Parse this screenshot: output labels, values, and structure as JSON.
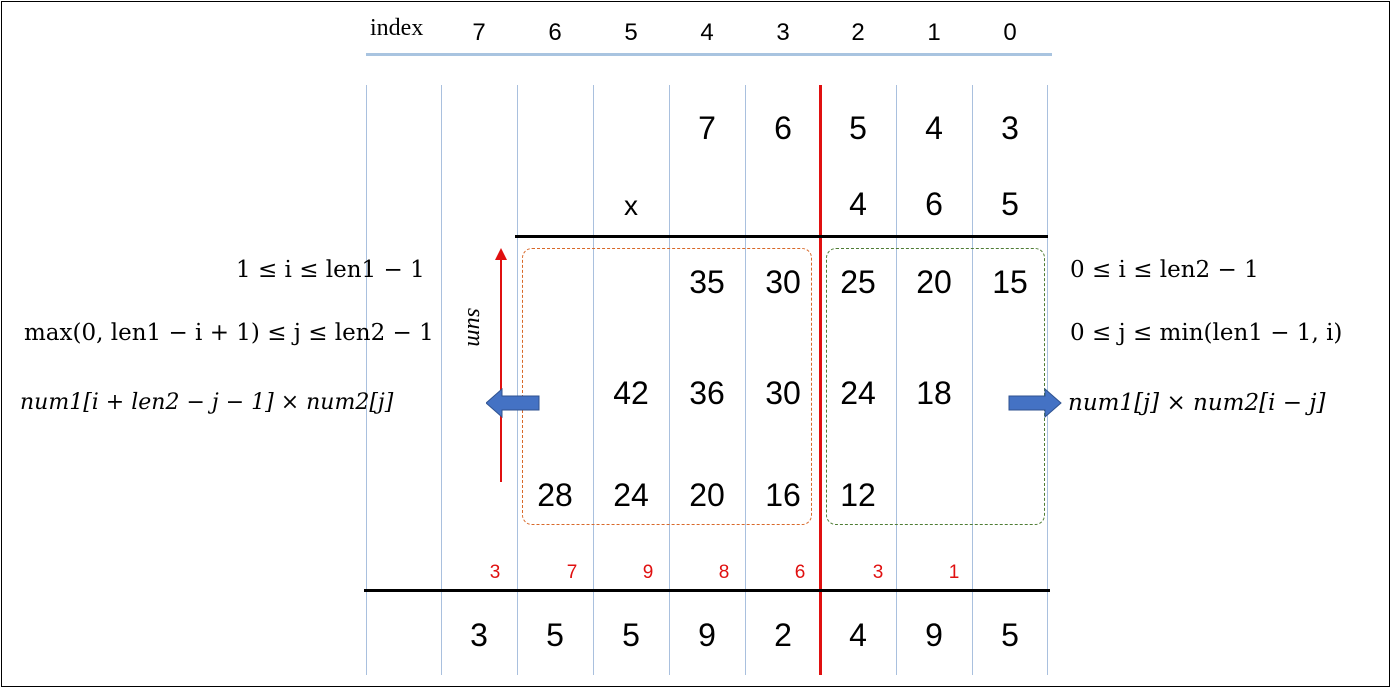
{
  "header": {
    "index_label": "index",
    "index_values": [
      "7",
      "6",
      "5",
      "4",
      "3",
      "2",
      "1",
      "0"
    ]
  },
  "num1_row": [
    "",
    "",
    "",
    "7",
    "6",
    "5",
    "4",
    "3"
  ],
  "num2_row": [
    "",
    "",
    "x",
    "",
    "",
    "4",
    "6",
    "5"
  ],
  "products": {
    "row1": [
      "",
      "",
      "",
      "35",
      "30",
      "25",
      "20",
      "15"
    ],
    "row2": [
      "",
      "",
      "42",
      "36",
      "30",
      "24",
      "18",
      ""
    ],
    "row3": [
      "",
      "28",
      "24",
      "20",
      "16",
      "12",
      "",
      ""
    ]
  },
  "carry_row": [
    "3",
    "7",
    "9",
    "8",
    "6",
    "3",
    "1",
    ""
  ],
  "result_row": [
    "3",
    "5",
    "5",
    "9",
    "2",
    "4",
    "9",
    "5"
  ],
  "left_conditions": {
    "i_range": "1 ≤ i ≤ len1 − 1",
    "j_range": "max(0, len1 − i + 1) ≤ j ≤ len2 − 1",
    "formula": "num1[i + len2  −  j  − 1] × num2[j]"
  },
  "right_conditions": {
    "i_range": "0 ≤ i ≤ len2 − 1",
    "j_range": "0 ≤ j ≤ min(len1 − 1, i)",
    "formula": "num1[j] × num2[i  − j]"
  },
  "sum_label": "sum",
  "colors": {
    "grid_line": "#a9c0de",
    "divider": "#e01010",
    "carry": "#e01010",
    "left_box": "#d8692a",
    "right_box": "#4f7d35",
    "arrow_fill": "#4472c4"
  }
}
